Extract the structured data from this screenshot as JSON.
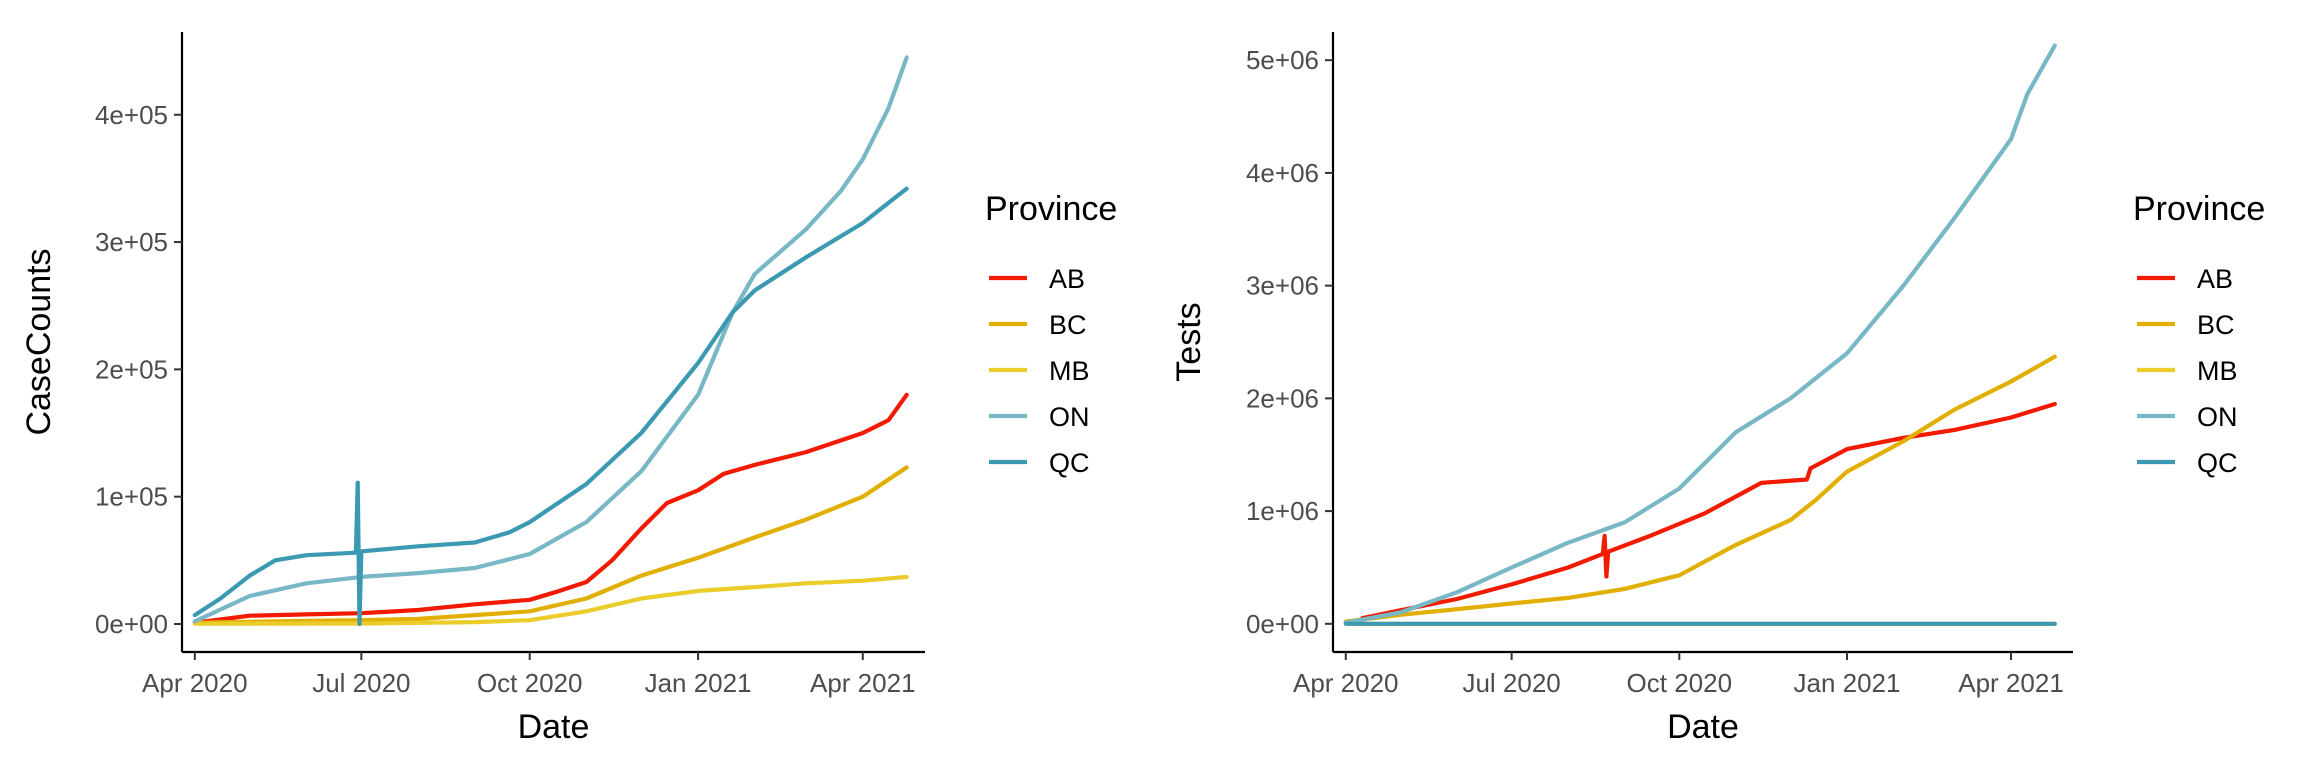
{
  "chart_data": [
    {
      "type": "line",
      "xlabel": "Date",
      "ylabel": "CaseCounts",
      "xlim": [
        "2020-03-25",
        "2021-05-05"
      ],
      "ylim": [
        -22000,
        465000
      ],
      "x_ticks": [
        "2020-04-01",
        "2020-07-01",
        "2020-10-01",
        "2021-01-01",
        "2021-04-01"
      ],
      "x_tick_labels": [
        "Apr 2020",
        "Jul 2020",
        "Oct 2020",
        "Jan 2021",
        "Apr 2021"
      ],
      "y_ticks": [
        0,
        100000,
        200000,
        300000,
        400000
      ],
      "y_tick_labels": [
        "0e+00",
        "1e+05",
        "2e+05",
        "3e+05",
        "4e+05"
      ],
      "legend": {
        "title": "Province",
        "position": "right",
        "entries": [
          {
            "label": "AB",
            "color": "#F21A00"
          },
          {
            "label": "BC",
            "color": "#E1AF00"
          },
          {
            "label": "MB",
            "color": "#EBCC2A"
          },
          {
            "label": "ON",
            "color": "#78B7C5"
          },
          {
            "label": "QC",
            "color": "#3B9AB2"
          }
        ]
      },
      "series": [
        {
          "name": "AB",
          "color": "#F21A00",
          "points": [
            [
              "2020-04-01",
              1000
            ],
            [
              "2020-05-01",
              6500
            ],
            [
              "2020-06-01",
              7500
            ],
            [
              "2020-07-01",
              8500
            ],
            [
              "2020-08-01",
              11000
            ],
            [
              "2020-09-01",
              15500
            ],
            [
              "2020-10-01",
              19000
            ],
            [
              "2020-10-15",
              25000
            ],
            [
              "2020-11-01",
              33000
            ],
            [
              "2020-11-15",
              50000
            ],
            [
              "2020-12-01",
              75000
            ],
            [
              "2020-12-15",
              95000
            ],
            [
              "2021-01-01",
              105000
            ],
            [
              "2021-01-15",
              118000
            ],
            [
              "2021-02-01",
              125000
            ],
            [
              "2021-03-01",
              135000
            ],
            [
              "2021-04-01",
              150000
            ],
            [
              "2021-04-15",
              160000
            ],
            [
              "2021-04-25",
              180000
            ]
          ]
        },
        {
          "name": "BC",
          "color": "#E1AF00",
          "points": [
            [
              "2020-04-01",
              1000
            ],
            [
              "2020-06-01",
              2500
            ],
            [
              "2020-07-01",
              3000
            ],
            [
              "2020-08-01",
              4000
            ],
            [
              "2020-09-01",
              7000
            ],
            [
              "2020-10-01",
              10000
            ],
            [
              "2020-11-01",
              20000
            ],
            [
              "2020-12-01",
              38000
            ],
            [
              "2021-01-01",
              52000
            ],
            [
              "2021-02-01",
              68000
            ],
            [
              "2021-03-01",
              82000
            ],
            [
              "2021-04-01",
              100000
            ],
            [
              "2021-04-25",
              123000
            ]
          ]
        },
        {
          "name": "MB",
          "color": "#EBCC2A",
          "points": [
            [
              "2020-04-01",
              200
            ],
            [
              "2020-07-01",
              400
            ],
            [
              "2020-09-01",
              1500
            ],
            [
              "2020-10-01",
              3000
            ],
            [
              "2020-11-01",
              10000
            ],
            [
              "2020-12-01",
              20000
            ],
            [
              "2021-01-01",
              26000
            ],
            [
              "2021-02-01",
              29000
            ],
            [
              "2021-03-01",
              32000
            ],
            [
              "2021-04-01",
              34000
            ],
            [
              "2021-04-25",
              37000
            ]
          ]
        },
        {
          "name": "ON",
          "color": "#78B7C5",
          "points": [
            [
              "2020-04-01",
              2000
            ],
            [
              "2020-05-01",
              22000
            ],
            [
              "2020-06-01",
              32000
            ],
            [
              "2020-07-01",
              37000
            ],
            [
              "2020-08-01",
              40000
            ],
            [
              "2020-09-01",
              44000
            ],
            [
              "2020-10-01",
              55000
            ],
            [
              "2020-11-01",
              80000
            ],
            [
              "2020-12-01",
              120000
            ],
            [
              "2021-01-01",
              180000
            ],
            [
              "2021-01-20",
              245000
            ],
            [
              "2021-02-01",
              275000
            ],
            [
              "2021-03-01",
              310000
            ],
            [
              "2021-03-20",
              340000
            ],
            [
              "2021-04-01",
              365000
            ],
            [
              "2021-04-15",
              405000
            ],
            [
              "2021-04-25",
              445000
            ]
          ]
        },
        {
          "name": "QC",
          "color": "#3B9AB2",
          "points": [
            [
              "2020-04-01",
              7000
            ],
            [
              "2020-04-15",
              20000
            ],
            [
              "2020-05-01",
              38000
            ],
            [
              "2020-05-15",
              50000
            ],
            [
              "2020-06-01",
              54000
            ],
            [
              "2020-06-28",
              56000
            ],
            [
              "2020-06-29",
              111000
            ],
            [
              "2020-06-30",
              0
            ],
            [
              "2020-07-01",
              57000
            ],
            [
              "2020-08-01",
              61000
            ],
            [
              "2020-09-01",
              64000
            ],
            [
              "2020-09-20",
              72000
            ],
            [
              "2020-10-01",
              80000
            ],
            [
              "2020-11-01",
              110000
            ],
            [
              "2020-12-01",
              150000
            ],
            [
              "2021-01-01",
              205000
            ],
            [
              "2021-01-20",
              245000
            ],
            [
              "2021-02-01",
              262000
            ],
            [
              "2021-03-01",
              288000
            ],
            [
              "2021-04-01",
              315000
            ],
            [
              "2021-04-25",
              342000
            ]
          ]
        }
      ]
    },
    {
      "type": "line",
      "xlabel": "Date",
      "ylabel": "Tests",
      "xlim": [
        "2020-03-25",
        "2021-05-05"
      ],
      "ylim": [
        -250000,
        5250000
      ],
      "x_ticks": [
        "2020-04-01",
        "2020-07-01",
        "2020-10-01",
        "2021-01-01",
        "2021-04-01"
      ],
      "x_tick_labels": [
        "Apr 2020",
        "Jul 2020",
        "Oct 2020",
        "Jan 2021",
        "Apr 2021"
      ],
      "y_ticks": [
        0,
        1000000,
        2000000,
        3000000,
        4000000,
        5000000
      ],
      "y_tick_labels": [
        "0e+00",
        "1e+06",
        "2e+06",
        "3e+06",
        "4e+06",
        "5e+06"
      ],
      "legend": {
        "title": "Province",
        "position": "right",
        "entries": [
          {
            "label": "AB",
            "color": "#F21A00"
          },
          {
            "label": "BC",
            "color": "#E1AF00"
          },
          {
            "label": "MB",
            "color": "#EBCC2A"
          },
          {
            "label": "ON",
            "color": "#78B7C5"
          },
          {
            "label": "QC",
            "color": "#3B9AB2"
          }
        ]
      },
      "series": [
        {
          "name": "AB",
          "color": "#F21A00",
          "points": [
            [
              "2020-04-10",
              50000
            ],
            [
              "2020-05-01",
              120000
            ],
            [
              "2020-06-01",
              220000
            ],
            [
              "2020-07-01",
              350000
            ],
            [
              "2020-08-01",
              500000
            ],
            [
              "2020-08-20",
              620000
            ],
            [
              "2020-08-21",
              780000
            ],
            [
              "2020-08-22",
              420000
            ],
            [
              "2020-08-23",
              640000
            ],
            [
              "2020-09-15",
              780000
            ],
            [
              "2020-10-15",
              980000
            ],
            [
              "2020-11-15",
              1250000
            ],
            [
              "2020-12-10",
              1280000
            ],
            [
              "2020-12-12",
              1380000
            ],
            [
              "2021-01-01",
              1550000
            ],
            [
              "2021-02-01",
              1650000
            ],
            [
              "2021-03-01",
              1720000
            ],
            [
              "2021-04-01",
              1830000
            ],
            [
              "2021-04-25",
              1950000
            ]
          ]
        },
        {
          "name": "BC",
          "color": "#E1AF00",
          "points": [
            [
              "2020-04-01",
              20000
            ],
            [
              "2020-05-01",
              80000
            ],
            [
              "2020-06-01",
              130000
            ],
            [
              "2020-07-01",
              180000
            ],
            [
              "2020-08-01",
              230000
            ],
            [
              "2020-09-01",
              310000
            ],
            [
              "2020-10-01",
              430000
            ],
            [
              "2020-11-01",
              700000
            ],
            [
              "2020-12-01",
              920000
            ],
            [
              "2020-12-15",
              1100000
            ],
            [
              "2021-01-01",
              1350000
            ],
            [
              "2021-02-01",
              1620000
            ],
            [
              "2021-03-01",
              1900000
            ],
            [
              "2021-04-01",
              2150000
            ],
            [
              "2021-04-25",
              2370000
            ]
          ]
        },
        {
          "name": "MB",
          "color": "#EBCC2A",
          "points": [
            [
              "2020-04-01",
              0
            ],
            [
              "2021-04-25",
              0
            ]
          ]
        },
        {
          "name": "ON",
          "color": "#78B7C5",
          "points": [
            [
              "2020-04-01",
              10000
            ],
            [
              "2020-05-01",
              100000
            ],
            [
              "2020-06-01",
              280000
            ],
            [
              "2020-07-01",
              500000
            ],
            [
              "2020-08-01",
              720000
            ],
            [
              "2020-09-01",
              900000
            ],
            [
              "2020-10-01",
              1200000
            ],
            [
              "2020-11-01",
              1700000
            ],
            [
              "2020-12-01",
              2000000
            ],
            [
              "2021-01-01",
              2400000
            ],
            [
              "2021-02-01",
              3000000
            ],
            [
              "2021-03-01",
              3600000
            ],
            [
              "2021-04-01",
              4300000
            ],
            [
              "2021-04-10",
              4700000
            ],
            [
              "2021-04-25",
              5130000
            ]
          ]
        },
        {
          "name": "QC",
          "color": "#3B9AB2",
          "points": [
            [
              "2020-04-01",
              0
            ],
            [
              "2021-04-25",
              0
            ]
          ]
        }
      ]
    }
  ]
}
